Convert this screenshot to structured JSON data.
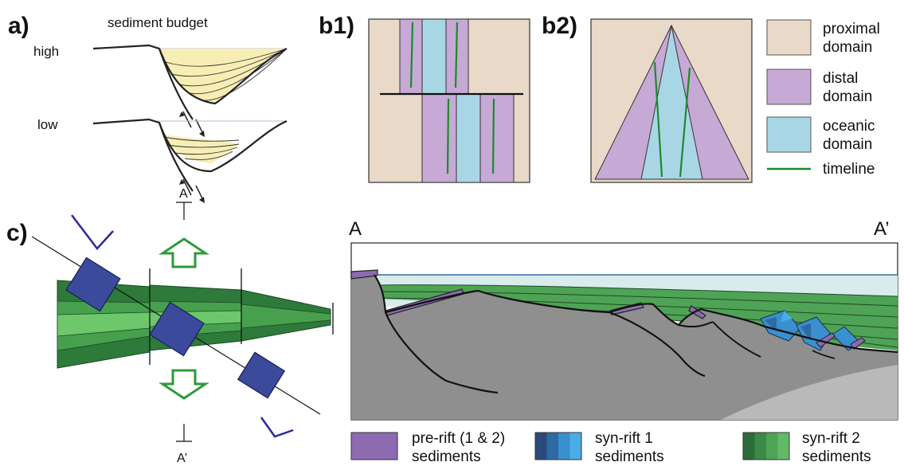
{
  "panels": {
    "a": "a)",
    "b1": "b1)",
    "b2": "b2)",
    "c": "c)"
  },
  "panel_a": {
    "title": "sediment budget",
    "high": "high",
    "low": "low"
  },
  "section_marker": {
    "start": "A",
    "end": "A’"
  },
  "cross_section": {
    "start": "A",
    "end": "A’"
  },
  "legend_domains": [
    {
      "line1": "proximal",
      "line2": "domain",
      "color": "#e8d9c8"
    },
    {
      "line1": "distal",
      "line2": "domain",
      "color": "#c7a9d5"
    },
    {
      "line1": "oceanic",
      "line2": "domain",
      "color": "#a9d6e5"
    },
    {
      "line1": "timeline",
      "line2": "",
      "color": "#1a8a2a"
    }
  ],
  "legend_sediments": [
    {
      "line1": "pre-rift (1 & 2)",
      "line2": "sediments",
      "colors": [
        "#8c6bb1"
      ]
    },
    {
      "line1": "syn-rift 1",
      "line2": "sediments",
      "colors": [
        "#2b4a7a",
        "#2f6aa3",
        "#3a8fcf",
        "#4aaee6"
      ]
    },
    {
      "line1": "syn-rift 2",
      "line2": "sediments",
      "colors": [
        "#2e6b3a",
        "#3c8a47",
        "#4fa356",
        "#62b968"
      ]
    }
  ]
}
